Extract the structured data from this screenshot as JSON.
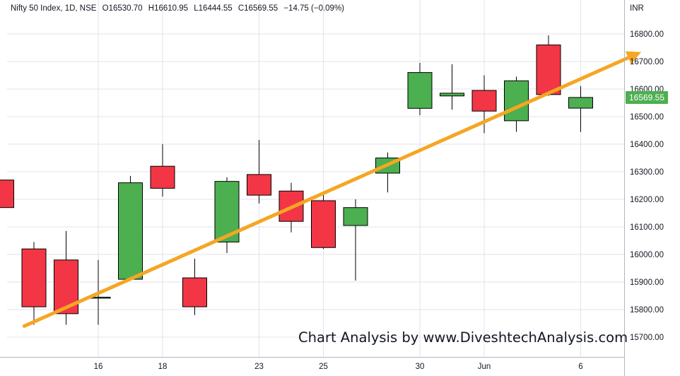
{
  "header": {
    "symbol": "Nifty 50 Index, 1D, NSE",
    "open": "O16530.70",
    "high": "H16610.95",
    "low": "L16444.55",
    "close": "C16569.55",
    "change": "−14.75 (−0.09%)"
  },
  "currency": "INR",
  "last_price": "16569.55",
  "watermark": "Chart Analysis by www.DiveshtechAnalysis.com",
  "colors": {
    "up": "#4caf50",
    "down": "#f23645",
    "trendline": "#f5a623",
    "grid": "#e0e3eb",
    "text": "#131722"
  },
  "chart_data": {
    "type": "candlestick",
    "title": "Nifty 50 Index, 1D, NSE",
    "x_tick_labels": [
      "16",
      "18",
      "23",
      "25",
      "30",
      "Jun",
      "6"
    ],
    "y_tick_labels": [
      "15700.00",
      "15800.00",
      "15900.00",
      "16000.00",
      "16100.00",
      "16200.00",
      "16300.00",
      "16400.00",
      "16500.00",
      "16600.00",
      "16700.00",
      "16800.00"
    ],
    "ylim": [
      15620,
      16920
    ],
    "grid": true,
    "candles": [
      {
        "open": 16270,
        "high": 16270,
        "low": 16170,
        "close": 16170
      },
      {
        "open": 16020,
        "high": 16045,
        "low": 15745,
        "close": 15810
      },
      {
        "open": 15980,
        "high": 16085,
        "low": 15745,
        "close": 15785
      },
      {
        "open": 15845,
        "high": 15980,
        "low": 15745,
        "close": 15845
      },
      {
        "open": 15910,
        "high": 16285,
        "low": 15905,
        "close": 16260
      },
      {
        "open": 16320,
        "high": 16400,
        "low": 16210,
        "close": 16240
      },
      {
        "open": 15915,
        "high": 15985,
        "low": 15780,
        "close": 15810
      },
      {
        "open": 16045,
        "high": 16280,
        "low": 16005,
        "close": 16265
      },
      {
        "open": 16290,
        "high": 16415,
        "low": 16185,
        "close": 16215
      },
      {
        "open": 16230,
        "high": 16260,
        "low": 16080,
        "close": 16120
      },
      {
        "open": 16195,
        "high": 16225,
        "low": 16020,
        "close": 16025
      },
      {
        "open": 16105,
        "high": 16200,
        "low": 15905,
        "close": 16170
      },
      {
        "open": 16295,
        "high": 16370,
        "low": 16225,
        "close": 16350
      },
      {
        "open": 16530,
        "high": 16695,
        "low": 16505,
        "close": 16660
      },
      {
        "open": 16575,
        "high": 16690,
        "low": 16525,
        "close": 16585
      },
      {
        "open": 16595,
        "high": 16650,
        "low": 16440,
        "close": 16520
      },
      {
        "open": 16485,
        "high": 16645,
        "low": 16445,
        "close": 16630
      },
      {
        "open": 16760,
        "high": 16795,
        "low": 16575,
        "close": 16580
      },
      {
        "open": 16530.7,
        "high": 16610.95,
        "low": 16444.55,
        "close": 16569.55
      }
    ],
    "trendline": {
      "from": {
        "index": 0.7,
        "value": 15740
      },
      "to": {
        "index": 19.7,
        "value": 16725
      }
    }
  }
}
